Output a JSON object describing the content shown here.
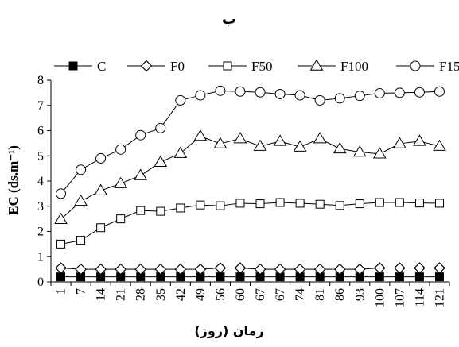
{
  "chart_data": {
    "type": "line",
    "title": "ب",
    "xlabel": "زمان (روز)",
    "ylabel": "EC (ds.m⁻¹)",
    "ylim": [
      0,
      8
    ],
    "yticks": [
      0,
      1,
      2,
      3,
      4,
      5,
      6,
      7,
      8
    ],
    "grid": false,
    "legend_position": "top",
    "x": [
      "1",
      "7",
      "14",
      "21",
      "28",
      "35",
      "42",
      "49",
      "56",
      "60",
      "67",
      "67",
      "74",
      "81",
      "86",
      "93",
      "100",
      "107",
      "114",
      "121"
    ],
    "series": [
      {
        "name": "C",
        "marker": "filled-square",
        "values": [
          0.2,
          0.2,
          0.2,
          0.2,
          0.2,
          0.2,
          0.2,
          0.2,
          0.2,
          0.2,
          0.2,
          0.2,
          0.2,
          0.2,
          0.2,
          0.2,
          0.2,
          0.2,
          0.2,
          0.2
        ]
      },
      {
        "name": "F0",
        "marker": "diamond",
        "values": [
          0.55,
          0.5,
          0.5,
          0.5,
          0.5,
          0.5,
          0.5,
          0.5,
          0.55,
          0.55,
          0.5,
          0.5,
          0.5,
          0.5,
          0.5,
          0.5,
          0.55,
          0.55,
          0.55,
          0.55
        ]
      },
      {
        "name": "F50",
        "marker": "square",
        "values": [
          1.5,
          1.65,
          2.15,
          2.5,
          2.83,
          2.8,
          2.93,
          3.05,
          3.02,
          3.12,
          3.1,
          3.15,
          3.12,
          3.08,
          3.03,
          3.1,
          3.15,
          3.15,
          3.13,
          3.12
        ]
      },
      {
        "name": "F100",
        "marker": "triangle",
        "values": [
          2.48,
          3.2,
          3.62,
          3.9,
          4.22,
          4.75,
          5.1,
          5.78,
          5.48,
          5.68,
          5.38,
          5.58,
          5.35,
          5.68,
          5.28,
          5.15,
          5.08,
          5.48,
          5.58,
          5.38
        ]
      },
      {
        "name": "F150",
        "marker": "circle",
        "values": [
          3.5,
          4.45,
          4.9,
          5.25,
          5.82,
          6.1,
          7.2,
          7.4,
          7.58,
          7.55,
          7.52,
          7.45,
          7.4,
          7.2,
          7.28,
          7.38,
          7.48,
          7.5,
          7.52,
          7.55
        ]
      }
    ]
  }
}
